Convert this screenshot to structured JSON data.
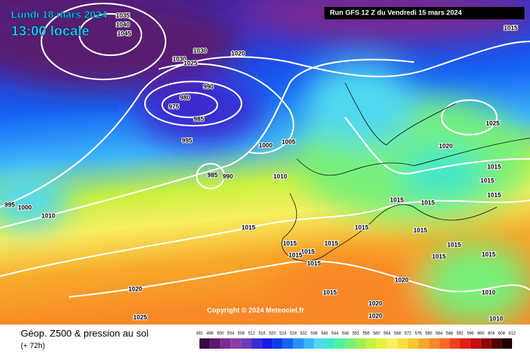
{
  "header": {
    "date": "Lundi 18 mars 2024",
    "time": "13:00 locale",
    "run": "Run GFS 12 Z du Vendredi 15 mars 2024"
  },
  "isobar_labels": [
    "1035",
    "1040",
    "1045",
    "1030",
    "1020",
    "1030",
    "1025",
    "990",
    "980",
    "975",
    "985",
    "995",
    "1000",
    "1005",
    "985",
    "990",
    "1010",
    "995",
    "1000",
    "1010",
    "1015",
    "1015",
    "1025",
    "1020",
    "1015",
    "1015",
    "1015",
    "1015",
    "1015",
    "1015",
    "1015",
    "1015",
    "1015",
    "1015",
    "1015",
    "1015",
    "1015",
    "1015",
    "1015",
    "1020",
    "1015",
    "1020",
    "1020",
    "1020",
    "1010",
    "1010",
    "1025"
  ],
  "copyright": "Copyright © 2024 Meteociel.fr",
  "footer": {
    "title": "Géop. Z500 & pression au sol",
    "lead": "(+ 72h)"
  },
  "legend": {
    "scale": [
      492,
      496,
      500,
      504,
      508,
      512,
      516,
      520,
      524,
      528,
      532,
      536,
      540,
      544,
      548,
      552,
      556,
      560,
      564,
      568,
      572,
      576,
      580,
      584,
      588,
      592,
      596,
      600,
      604,
      608,
      612
    ],
    "colors": [
      "#3b0a45",
      "#5a1a6e",
      "#7a2a8f",
      "#8e3aa8",
      "#6a3ab8",
      "#3a2ad0",
      "#1a1ae8",
      "#0a3cf0",
      "#1464f5",
      "#2890fa",
      "#3cb4fa",
      "#50d8f0",
      "#40e8c8",
      "#50f0a0",
      "#78f078",
      "#a0f050",
      "#c8f040",
      "#e8f040",
      "#f8f060",
      "#f8e040",
      "#f8c830",
      "#f8a828",
      "#f88828",
      "#f86828",
      "#f04020",
      "#e02018",
      "#c01010",
      "#900808",
      "#500404",
      "#200000"
    ]
  }
}
